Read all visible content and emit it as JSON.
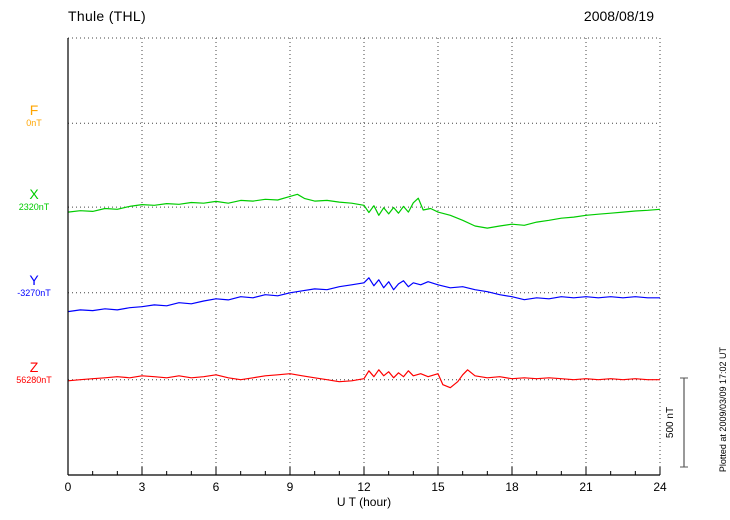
{
  "header": {
    "title": "Thule (THL)",
    "date": "2008/08/19"
  },
  "chart_data": {
    "type": "line",
    "title": "Thule (THL)",
    "subtitle": "2008/08/19",
    "xlabel": "U T (hour)",
    "ylabel": "",
    "xlim": [
      0,
      24
    ],
    "x_ticks": [
      0,
      3,
      6,
      9,
      12,
      15,
      18,
      21,
      24
    ],
    "x_minor_step": 1,
    "grid": "dotted vertical lines at 3-hour ticks; dotted horizontal line at each component baseline and top frame",
    "legend_position": "left margin, one colored letter + baseline value per component",
    "scale_bar": {
      "label": "500 nT",
      "nT": 500
    },
    "plotted_at": "Plotted at 2009/03/09 17:02 UT",
    "series": [
      {
        "name": "F",
        "color": "#FFA500",
        "base_label": "0nT",
        "base_value_nT": 0,
        "baseline_frac": 0.195,
        "points": []
      },
      {
        "name": "X",
        "color": "#00CC00",
        "base_label": "2320nT",
        "base_value_nT": 2320,
        "baseline_frac": 0.387,
        "points": [
          [
            0,
            -28
          ],
          [
            0.5,
            -20
          ],
          [
            1,
            -24
          ],
          [
            1.5,
            -8
          ],
          [
            2,
            -12
          ],
          [
            2.5,
            4
          ],
          [
            3,
            14
          ],
          [
            3.5,
            10
          ],
          [
            4,
            20
          ],
          [
            4.5,
            16
          ],
          [
            5,
            26
          ],
          [
            5.5,
            22
          ],
          [
            6,
            32
          ],
          [
            6.5,
            22
          ],
          [
            7,
            38
          ],
          [
            7.5,
            34
          ],
          [
            8,
            44
          ],
          [
            8.5,
            40
          ],
          [
            9,
            60
          ],
          [
            9.3,
            72
          ],
          [
            9.6,
            48
          ],
          [
            10,
            34
          ],
          [
            10.5,
            38
          ],
          [
            11,
            28
          ],
          [
            11.5,
            22
          ],
          [
            12,
            10
          ],
          [
            12.2,
            -30
          ],
          [
            12.4,
            8
          ],
          [
            12.6,
            -46
          ],
          [
            12.8,
            -4
          ],
          [
            13,
            -38
          ],
          [
            13.2,
            -2
          ],
          [
            13.4,
            -34
          ],
          [
            13.6,
            4
          ],
          [
            13.8,
            -28
          ],
          [
            14,
            24
          ],
          [
            14.2,
            50
          ],
          [
            14.4,
            -16
          ],
          [
            14.7,
            -8
          ],
          [
            15,
            -28
          ],
          [
            15.5,
            -46
          ],
          [
            16,
            -74
          ],
          [
            16.5,
            -106
          ],
          [
            17,
            -118
          ],
          [
            17.5,
            -106
          ],
          [
            18,
            -96
          ],
          [
            18.5,
            -102
          ],
          [
            19,
            -84
          ],
          [
            19.5,
            -74
          ],
          [
            20,
            -62
          ],
          [
            20.5,
            -56
          ],
          [
            21,
            -46
          ],
          [
            21.5,
            -40
          ],
          [
            22,
            -34
          ],
          [
            22.5,
            -28
          ],
          [
            23,
            -22
          ],
          [
            23.5,
            -18
          ],
          [
            24,
            -12
          ]
        ]
      },
      {
        "name": "Y",
        "color": "#0000FF",
        "base_label": "-3270nT",
        "base_value_nT": -3270,
        "baseline_frac": 0.583,
        "points": [
          [
            0,
            -106
          ],
          [
            0.5,
            -96
          ],
          [
            1,
            -100
          ],
          [
            1.5,
            -90
          ],
          [
            2,
            -96
          ],
          [
            2.5,
            -84
          ],
          [
            3,
            -78
          ],
          [
            3.5,
            -68
          ],
          [
            4,
            -73
          ],
          [
            4.5,
            -56
          ],
          [
            5,
            -62
          ],
          [
            5.5,
            -46
          ],
          [
            6,
            -34
          ],
          [
            6.5,
            -40
          ],
          [
            7,
            -22
          ],
          [
            7.5,
            -28
          ],
          [
            8,
            -11
          ],
          [
            8.5,
            -17
          ],
          [
            9,
            0
          ],
          [
            9.5,
            11
          ],
          [
            10,
            22
          ],
          [
            10.5,
            17
          ],
          [
            11,
            34
          ],
          [
            11.5,
            45
          ],
          [
            12,
            56
          ],
          [
            12.2,
            84
          ],
          [
            12.4,
            39
          ],
          [
            12.6,
            73
          ],
          [
            12.8,
            28
          ],
          [
            13,
            62
          ],
          [
            13.2,
            17
          ],
          [
            13.4,
            50
          ],
          [
            13.6,
            67
          ],
          [
            13.8,
            34
          ],
          [
            14,
            56
          ],
          [
            14.3,
            45
          ],
          [
            14.6,
            62
          ],
          [
            15,
            45
          ],
          [
            15.5,
            28
          ],
          [
            16,
            34
          ],
          [
            16.5,
            17
          ],
          [
            17,
            6
          ],
          [
            17.5,
            -11
          ],
          [
            18,
            -22
          ],
          [
            18.5,
            -39
          ],
          [
            19,
            -28
          ],
          [
            19.5,
            -34
          ],
          [
            20,
            -22
          ],
          [
            20.5,
            -28
          ],
          [
            21,
            -22
          ],
          [
            21.5,
            -28
          ],
          [
            22,
            -22
          ],
          [
            22.5,
            -28
          ],
          [
            23,
            -22
          ],
          [
            23.5,
            -28
          ],
          [
            24,
            -28
          ]
        ]
      },
      {
        "name": "Z",
        "color": "#FF0000",
        "base_label": "56280nT",
        "base_value_nT": 56280,
        "baseline_frac": 0.782,
        "points": [
          [
            0,
            -6
          ],
          [
            0.5,
            0
          ],
          [
            1,
            6
          ],
          [
            1.5,
            11
          ],
          [
            2,
            17
          ],
          [
            2.5,
            11
          ],
          [
            3,
            22
          ],
          [
            3.5,
            17
          ],
          [
            4,
            11
          ],
          [
            4.5,
            22
          ],
          [
            5,
            11
          ],
          [
            5.5,
            17
          ],
          [
            6,
            28
          ],
          [
            6.5,
            11
          ],
          [
            7,
            0
          ],
          [
            7.5,
            11
          ],
          [
            8,
            22
          ],
          [
            8.5,
            28
          ],
          [
            9,
            34
          ],
          [
            9.5,
            22
          ],
          [
            10,
            11
          ],
          [
            10.5,
            0
          ],
          [
            11,
            -11
          ],
          [
            11.5,
            -6
          ],
          [
            12,
            6
          ],
          [
            12.2,
            50
          ],
          [
            12.4,
            17
          ],
          [
            12.6,
            56
          ],
          [
            12.8,
            22
          ],
          [
            13,
            45
          ],
          [
            13.2,
            11
          ],
          [
            13.4,
            39
          ],
          [
            13.6,
            17
          ],
          [
            13.8,
            50
          ],
          [
            14,
            22
          ],
          [
            14.3,
            34
          ],
          [
            14.6,
            17
          ],
          [
            15,
            34
          ],
          [
            15.2,
            -28
          ],
          [
            15.5,
            -45
          ],
          [
            15.8,
            -11
          ],
          [
            16,
            28
          ],
          [
            16.2,
            56
          ],
          [
            16.5,
            22
          ],
          [
            17,
            11
          ],
          [
            17.5,
            17
          ],
          [
            18,
            6
          ],
          [
            18.5,
            11
          ],
          [
            19,
            6
          ],
          [
            19.5,
            11
          ],
          [
            20,
            6
          ],
          [
            20.5,
            0
          ],
          [
            21,
            6
          ],
          [
            21.5,
            0
          ],
          [
            22,
            6
          ],
          [
            22.5,
            0
          ],
          [
            23,
            6
          ],
          [
            23.5,
            0
          ],
          [
            24,
            0
          ]
        ]
      }
    ]
  }
}
